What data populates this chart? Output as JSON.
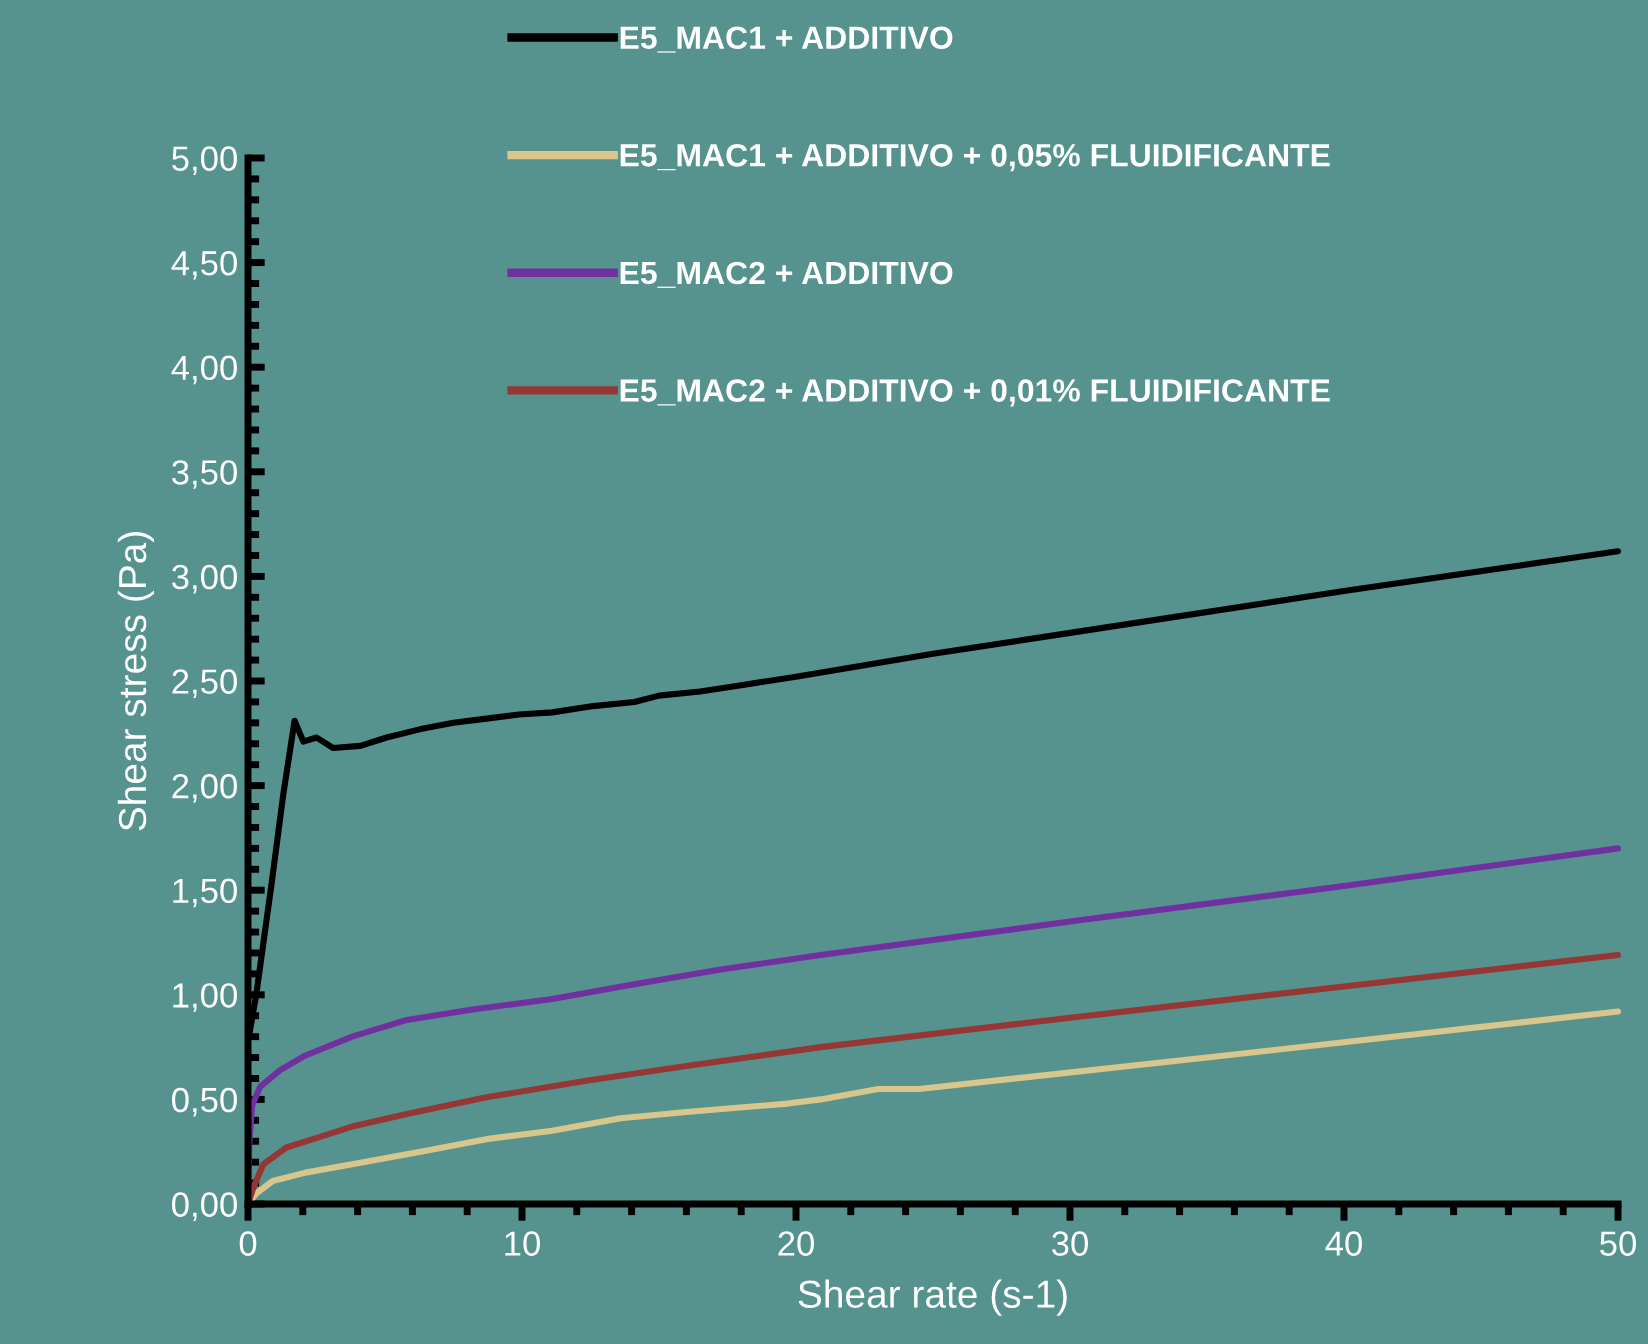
{
  "chart_data": {
    "type": "line",
    "xlabel": "Shear rate (s-1)",
    "ylabel": "Shear stress (Pa)",
    "xlim": [
      0,
      50
    ],
    "xticks": [
      0,
      10,
      20,
      30,
      40,
      50
    ],
    "ylim": [
      0,
      5
    ],
    "yticks": [
      {
        "value": 0,
        "label": "0,00"
      },
      {
        "value": 0.5,
        "label": "0,50"
      },
      {
        "value": 1,
        "label": "1,00"
      },
      {
        "value": 1.5,
        "label": "1,50"
      },
      {
        "value": 2,
        "label": "2,00"
      },
      {
        "value": 2.5,
        "label": "2,50"
      },
      {
        "value": 3,
        "label": "3,00"
      },
      {
        "value": 3.5,
        "label": "3,50"
      },
      {
        "value": 4,
        "label": "4,00"
      },
      {
        "value": 4.5,
        "label": "4,50"
      },
      {
        "value": 5,
        "label": "5,00"
      }
    ],
    "grid": false,
    "legend": "top",
    "marker": "none",
    "line_style": "solid",
    "series": [
      {
        "name": "E5_MAC1 + ADDITIVO",
        "color": "#000000",
        "x": [
          0,
          0.1,
          0.3,
          0.88,
          1.29,
          1.7,
          2.02,
          2.5,
          3.1,
          4.1,
          5.06,
          6.3,
          7.5,
          8.7,
          9.9,
          11.1,
          12.6,
          14.1,
          15.0,
          16.5,
          18.0,
          20,
          25,
          30,
          40,
          50
        ],
        "values": [
          0.78,
          0.85,
          1.0,
          1.55,
          1.96,
          2.31,
          2.21,
          2.23,
          2.18,
          2.19,
          2.23,
          2.27,
          2.3,
          2.32,
          2.34,
          2.35,
          2.38,
          2.4,
          2.43,
          2.45,
          2.48,
          2.52,
          2.63,
          2.73,
          2.93,
          3.12
        ]
      },
      {
        "name": "E5_MAC1 + ADDITIVO + 0,05% FLUIDIFICANTE",
        "color": "#d8c68a",
        "x": [
          0,
          0.3,
          0.9,
          2.1,
          3.8,
          6.3,
          8.7,
          11.1,
          13.6,
          16,
          19.7,
          20.9,
          23,
          24.5,
          35,
          50
        ],
        "values": [
          0.0,
          0.05,
          0.11,
          0.15,
          0.19,
          0.25,
          0.31,
          0.35,
          0.41,
          0.44,
          0.48,
          0.5,
          0.55,
          0.55,
          0.7,
          0.92
        ]
      },
      {
        "name": "E5_MAC2 + ADDITIVO",
        "color": "#7030a0",
        "x": [
          0,
          0.05,
          0.15,
          0.44,
          1.17,
          2.1,
          3.8,
          5.8,
          8.2,
          11.1,
          14.1,
          17.2,
          20.9,
          30,
          40,
          50
        ],
        "values": [
          0.02,
          0.3,
          0.47,
          0.56,
          0.64,
          0.71,
          0.8,
          0.88,
          0.93,
          0.98,
          1.05,
          1.12,
          1.19,
          1.35,
          1.52,
          1.7
        ]
      },
      {
        "name": "E5_MAC2 + ADDITIVO + 0,01% FLUIDIFICANTE",
        "color": "#953735",
        "x": [
          0,
          0.2,
          0.56,
          1.4,
          2.6,
          3.8,
          5.8,
          8.7,
          12.4,
          16,
          20.9,
          30,
          40,
          50
        ],
        "values": [
          0.0,
          0.08,
          0.19,
          0.27,
          0.32,
          0.37,
          0.43,
          0.51,
          0.59,
          0.66,
          0.75,
          0.89,
          1.04,
          1.19
        ]
      }
    ]
  }
}
